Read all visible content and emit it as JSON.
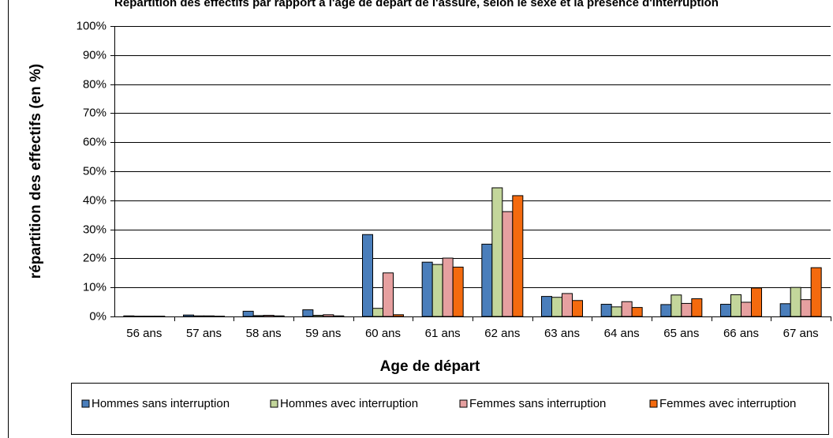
{
  "chart_data": {
    "type": "bar",
    "title": "Répartition des effectifs par rapport à l'âge de départ de l'assuré, selon le sexe et la présence d'interruption",
    "x_label": "Age de départ",
    "y_label": "répartition des effectifs (en %)",
    "categories": [
      "56 ans",
      "57 ans",
      "58 ans",
      "59 ans",
      "60 ans",
      "61 ans",
      "62 ans",
      "63 ans",
      "64 ans",
      "65 ans",
      "66 ans",
      "67 ans"
    ],
    "series": [
      {
        "name": "Hommes sans interruption",
        "color": "#4a7ebb",
        "values": [
          0.2,
          0.5,
          1.8,
          2.3,
          28.2,
          18.7,
          24.9,
          6.9,
          4.2,
          4.1,
          4.2,
          4.4
        ]
      },
      {
        "name": "Hommes avec interruption",
        "color": "#c3d69b",
        "values": [
          0.1,
          0.2,
          0.3,
          0.4,
          2.8,
          17.9,
          44.3,
          6.6,
          3.3,
          7.4,
          7.5,
          10.0
        ]
      },
      {
        "name": "Femmes sans interruption",
        "color": "#e6a0a0",
        "values": [
          0.1,
          0.2,
          0.4,
          0.6,
          15.0,
          20.1,
          36.1,
          7.9,
          5.1,
          4.5,
          4.9,
          5.8
        ]
      },
      {
        "name": "Femmes avec interruption",
        "color": "#f46a0e",
        "values": [
          0.1,
          0.1,
          0.2,
          0.2,
          0.6,
          17.0,
          41.6,
          5.5,
          3.1,
          6.1,
          9.8,
          16.8
        ]
      }
    ],
    "ylim": [
      0,
      100
    ],
    "yticks": [
      {
        "value": 0,
        "label": "0%"
      },
      {
        "value": 10,
        "label": "10%"
      },
      {
        "value": 20,
        "label": "20%"
      },
      {
        "value": 30,
        "label": "30%"
      },
      {
        "value": 40,
        "label": "40%"
      },
      {
        "value": 50,
        "label": "50%"
      },
      {
        "value": 60,
        "label": "60%"
      },
      {
        "value": 70,
        "label": "70%"
      },
      {
        "value": 80,
        "label": "80%"
      },
      {
        "value": 90,
        "label": "90%"
      },
      {
        "value": 100,
        "label": "100%"
      }
    ],
    "grid": true,
    "legend": "bottom"
  }
}
